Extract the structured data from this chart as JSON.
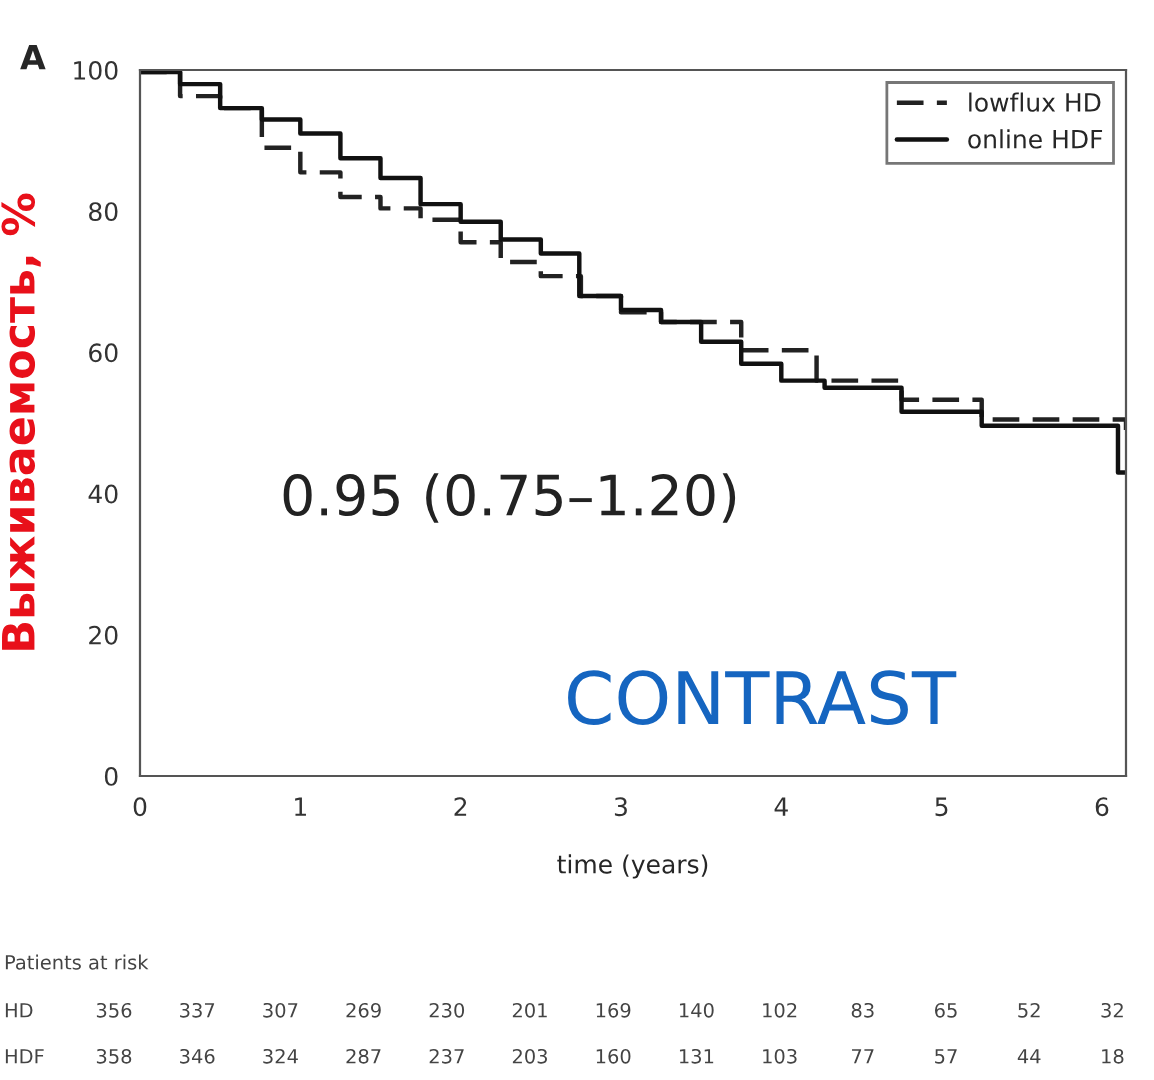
{
  "chart_data": {
    "type": "step",
    "xlabel": "time (years)",
    "ylabel": "Выживаемость, %",
    "xlim": [
      0,
      6.15
    ],
    "ylim": [
      0,
      100
    ],
    "xticks": [
      0,
      1,
      2,
      3,
      4,
      5,
      6
    ],
    "yticks": [
      0,
      20,
      40,
      60,
      80,
      100
    ],
    "grid": false,
    "legend": "top right",
    "series": [
      {
        "name": "lowflux HD",
        "color": "#222222",
        "line_style": "dashed",
        "x": [
          0,
          0.25,
          0.5,
          0.76,
          1.0,
          1.25,
          1.5,
          1.75,
          2.0,
          2.25,
          2.5,
          2.75,
          3.0,
          3.25,
          3.75,
          4.22,
          4.75,
          5.25,
          6.15
        ],
        "values": [
          99.7,
          96.3,
          94.6,
          89,
          85.5,
          82,
          80.4,
          78.8,
          75.6,
          72.8,
          70.8,
          68,
          65.7,
          64.3,
          60.3,
          56,
          53.3,
          50.5,
          49
        ]
      },
      {
        "name": "online HDF",
        "color": "#111111",
        "line_style": "solid",
        "x": [
          0,
          0.25,
          0.5,
          0.76,
          1.0,
          1.25,
          1.5,
          1.75,
          2.0,
          2.25,
          2.5,
          2.74,
          3.0,
          3.25,
          3.5,
          3.75,
          4.0,
          4.27,
          4.75,
          5.25,
          6.1,
          6.15
        ],
        "values": [
          99.7,
          98,
          94.6,
          93,
          91,
          87.5,
          84.7,
          81,
          78.5,
          76,
          74,
          68,
          66,
          64.3,
          61.5,
          58.4,
          56,
          55,
          51.6,
          49.6,
          43,
          43
        ]
      }
    ],
    "annotations": [
      "A",
      "0.95 (0.75–1.20)",
      "CONTRAST",
      "Patients at risk",
      "HD 356 337 307 269 230 201 169 140 102 83 65 52 32",
      "HDF 358 346 324 287 237 203 160 131 103 77 57 44 18"
    ]
  }
}
